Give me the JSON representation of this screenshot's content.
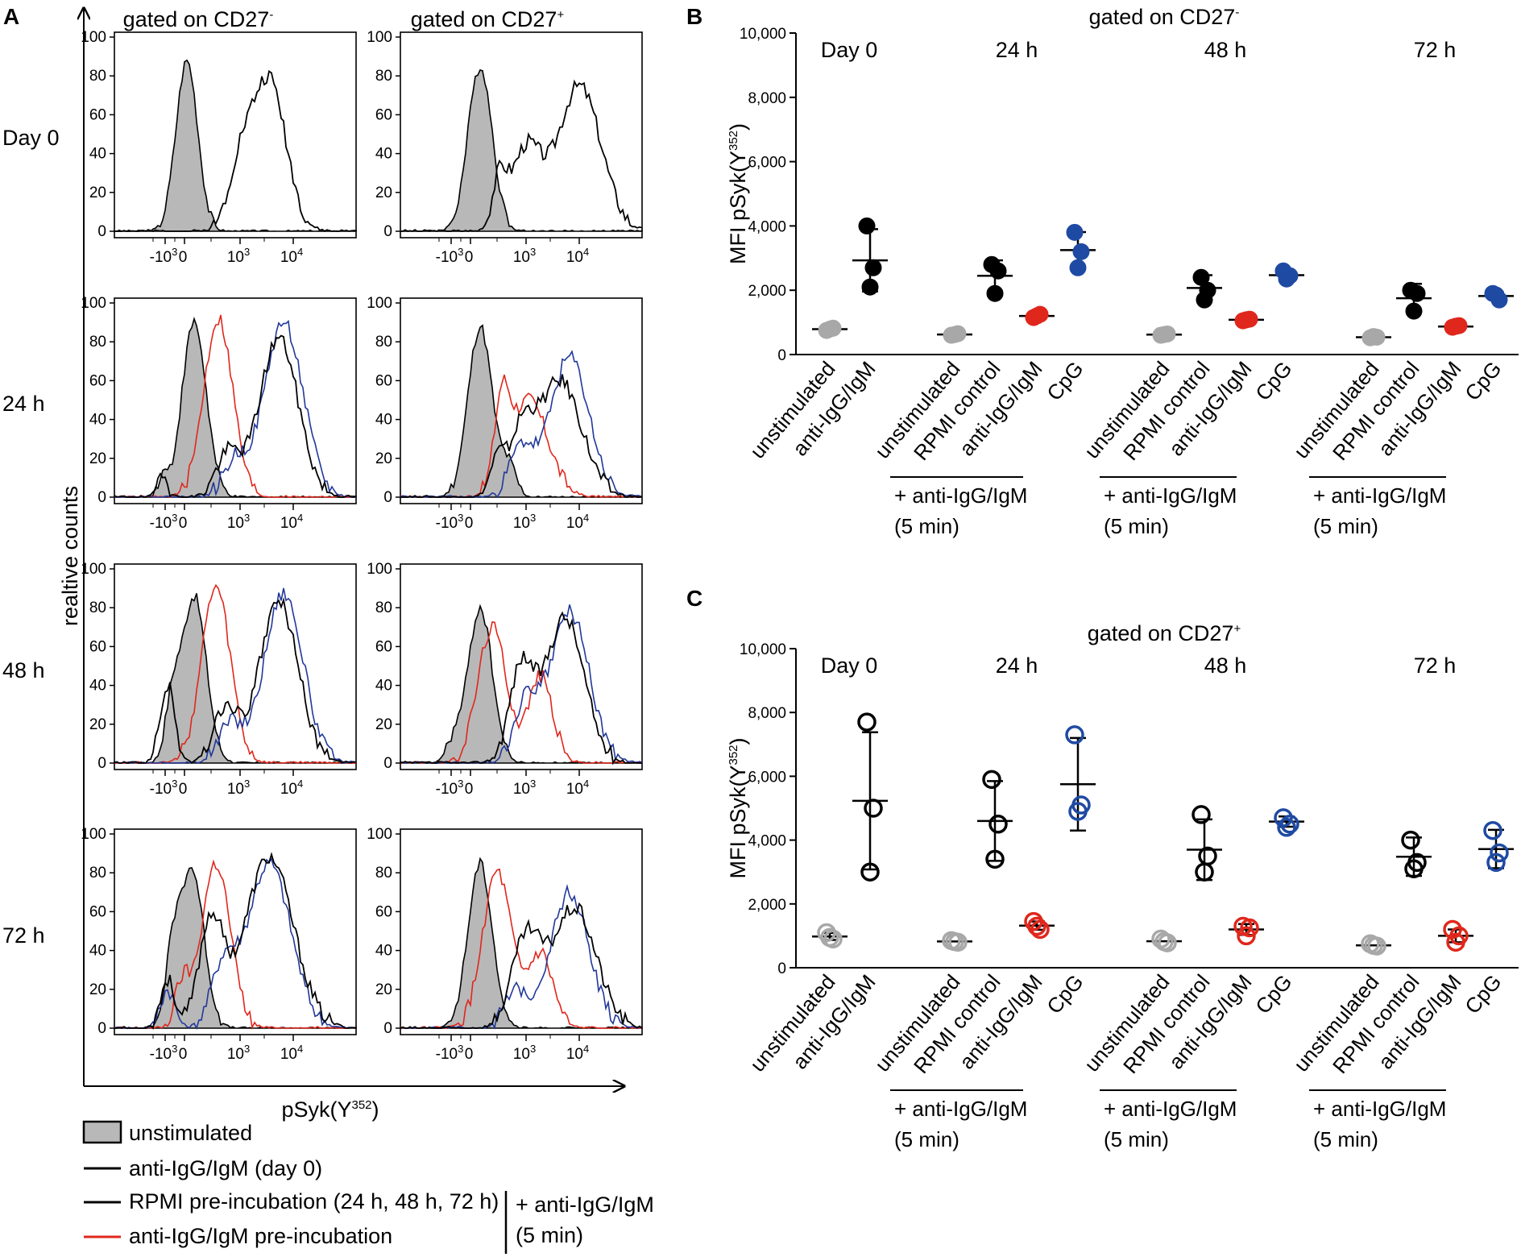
{
  "panel_a": {
    "label": "A",
    "columns": [
      {
        "pre": "gated on CD27",
        "sup": "-"
      },
      {
        "pre": "gated on CD27",
        "sup": "+"
      }
    ],
    "rows": [
      "Day 0",
      "24 h",
      "48 h",
      "72 h"
    ],
    "ylabel": "realtive counts",
    "xlabel": {
      "pre": "pSyk(Y",
      "sup": "352",
      "post": ")"
    },
    "yticks": [
      "100",
      "80",
      "60",
      "40",
      "20",
      "0"
    ],
    "xticks": [
      {
        "base": "-10",
        "exp": "3"
      },
      {
        "base": "0",
        "exp": ""
      },
      {
        "base": "10",
        "exp": "3"
      },
      {
        "base": "10",
        "exp": "4"
      }
    ]
  },
  "legend": {
    "items": [
      {
        "label": "unstimulated",
        "color": "#b8b8b8"
      },
      {
        "label": "anti-IgG/IgM (day 0)",
        "color": "#000000"
      },
      {
        "label": "RPMI pre-incubation (24 h, 48 h, 72 h)",
        "color": "#000000"
      },
      {
        "label": "anti-IgG/IgM pre-incubation",
        "color": "#e0271c"
      }
    ],
    "bracket_line1": "+ anti-IgG/IgM",
    "bracket_line2": "(5 min)"
  },
  "scatter_common": {
    "ylabel": {
      "pre": "MFI pSyk(Y",
      "sup": "352",
      "post": ")"
    },
    "ytick_labels": [
      "10,000",
      "8,000",
      "6,000",
      "4,000",
      "2,000",
      "0"
    ],
    "time_labels": [
      "Day 0",
      "24 h",
      "48 h",
      "72 h"
    ],
    "categories": [
      "unstimulated",
      "anti-IgG/IgM",
      "unstimulated",
      "RPMI control",
      "anti-IgG/IgM",
      "CpG",
      "unstimulated",
      "RPMI control",
      "anti-IgG/IgM",
      "CpG",
      "unstimulated",
      "RPMI control",
      "anti-IgG/IgM",
      "CpG"
    ],
    "bracket_line1": "+ anti-IgG/IgM",
    "bracket_line2": "(5 min)"
  },
  "chart_data": [
    {
      "type": "scatter",
      "panel": "B",
      "title": "gated on CD27-",
      "ylabel": "MFI pSyk(Y352)",
      "ylim": [
        0,
        10000
      ],
      "marker": "filled",
      "groups": [
        {
          "time": "Day 0",
          "category": "unstimulated",
          "color": "#a8a8a8",
          "points": [
            750,
            820,
            790
          ],
          "mean": 790,
          "sd": 40
        },
        {
          "time": "Day 0",
          "category": "anti-IgG/IgM",
          "color": "#000000",
          "points": [
            4000,
            2700,
            2100
          ],
          "mean": 2930,
          "sd": 970
        },
        {
          "time": "24 h",
          "category": "unstimulated",
          "color": "#a8a8a8",
          "points": [
            600,
            650,
            620
          ],
          "mean": 625,
          "sd": 30
        },
        {
          "time": "24 h",
          "category": "RPMI control",
          "color": "#000000",
          "points": [
            2800,
            2600,
            1900
          ],
          "mean": 2450,
          "sd": 480
        },
        {
          "time": "24 h",
          "category": "anti-IgG/IgM",
          "color": "#e0271c",
          "points": [
            1150,
            1250,
            1200
          ],
          "mean": 1200,
          "sd": 50
        },
        {
          "time": "24 h",
          "category": "CpG",
          "color": "#1f4aa3",
          "points": [
            3800,
            3200,
            2700
          ],
          "mean": 3250,
          "sd": 560
        },
        {
          "time": "48 h",
          "category": "unstimulated",
          "color": "#a8a8a8",
          "points": [
            600,
            640,
            620
          ],
          "mean": 620,
          "sd": 25
        },
        {
          "time": "48 h",
          "category": "RPMI control",
          "color": "#000000",
          "points": [
            2400,
            2000,
            1700
          ],
          "mean": 2070,
          "sd": 400
        },
        {
          "time": "48 h",
          "category": "anti-IgG/IgM",
          "color": "#e0271c",
          "points": [
            1050,
            1100,
            1080
          ],
          "mean": 1080,
          "sd": 30
        },
        {
          "time": "48 h",
          "category": "CpG",
          "color": "#1f4aa3",
          "points": [
            2600,
            2450,
            2350
          ],
          "mean": 2470,
          "sd": 130
        },
        {
          "time": "72 h",
          "category": "unstimulated",
          "color": "#a8a8a8",
          "points": [
            520,
            540,
            560
          ],
          "mean": 540,
          "sd": 25
        },
        {
          "time": "72 h",
          "category": "RPMI control",
          "color": "#000000",
          "points": [
            2000,
            1900,
            1350
          ],
          "mean": 1750,
          "sd": 450
        },
        {
          "time": "72 h",
          "category": "anti-IgG/IgM",
          "color": "#e0271c",
          "points": [
            850,
            900,
            880
          ],
          "mean": 870,
          "sd": 30
        },
        {
          "time": "72 h",
          "category": "CpG",
          "color": "#1f4aa3",
          "points": [
            1900,
            1700,
            1850
          ],
          "mean": 1820,
          "sd": 110
        }
      ]
    },
    {
      "type": "scatter",
      "panel": "C",
      "title": "gated on CD27+",
      "ylabel": "MFI pSyk(Y352)",
      "ylim": [
        0,
        10000
      ],
      "marker": "open",
      "groups": [
        {
          "time": "Day 0",
          "category": "unstimulated",
          "color": "#a8a8a8",
          "points": [
            1100,
            900,
            950
          ],
          "mean": 980,
          "sd": 110
        },
        {
          "time": "Day 0",
          "category": "anti-IgG/IgM",
          "color": "#000000",
          "points": [
            7700,
            5000,
            3000
          ],
          "mean": 5230,
          "sd": 2150
        },
        {
          "time": "24 h",
          "category": "unstimulated",
          "color": "#a8a8a8",
          "points": [
            850,
            800,
            820
          ],
          "mean": 825,
          "sd": 30
        },
        {
          "time": "24 h",
          "category": "RPMI control",
          "color": "#000000",
          "points": [
            5900,
            4500,
            3400
          ],
          "mean": 4600,
          "sd": 1250
        },
        {
          "time": "24 h",
          "category": "anti-IgG/IgM",
          "color": "#e0271c",
          "points": [
            1450,
            1200,
            1300
          ],
          "mean": 1320,
          "sd": 130
        },
        {
          "time": "24 h",
          "category": "CpG",
          "color": "#1f4aa3",
          "points": [
            7300,
            5100,
            4900
          ],
          "mean": 5750,
          "sd": 1450
        },
        {
          "time": "48 h",
          "category": "unstimulated",
          "color": "#a8a8a8",
          "points": [
            900,
            780,
            820
          ],
          "mean": 830,
          "sd": 60
        },
        {
          "time": "48 h",
          "category": "RPMI control",
          "color": "#000000",
          "points": [
            4800,
            3500,
            3000
          ],
          "mean": 3700,
          "sd": 950
        },
        {
          "time": "48 h",
          "category": "anti-IgG/IgM",
          "color": "#e0271c",
          "points": [
            1300,
            1250,
            1000
          ],
          "mean": 1200,
          "sd": 170
        },
        {
          "time": "48 h",
          "category": "CpG",
          "color": "#1f4aa3",
          "points": [
            4700,
            4500,
            4400
          ],
          "mean": 4580,
          "sd": 160
        },
        {
          "time": "72 h",
          "category": "unstimulated",
          "color": "#a8a8a8",
          "points": [
            750,
            680,
            700
          ],
          "mean": 700,
          "sd": 40
        },
        {
          "time": "72 h",
          "category": "RPMI control",
          "color": "#000000",
          "points": [
            4000,
            3300,
            3100
          ],
          "mean": 3480,
          "sd": 600
        },
        {
          "time": "72 h",
          "category": "anti-IgG/IgM",
          "color": "#e0271c",
          "points": [
            1200,
            1000,
            800
          ],
          "mean": 1000,
          "sd": 200
        },
        {
          "time": "72 h",
          "category": "CpG",
          "color": "#1f4aa3",
          "points": [
            4300,
            3600,
            3300
          ],
          "mean": 3720,
          "sd": 600
        }
      ]
    }
  ]
}
